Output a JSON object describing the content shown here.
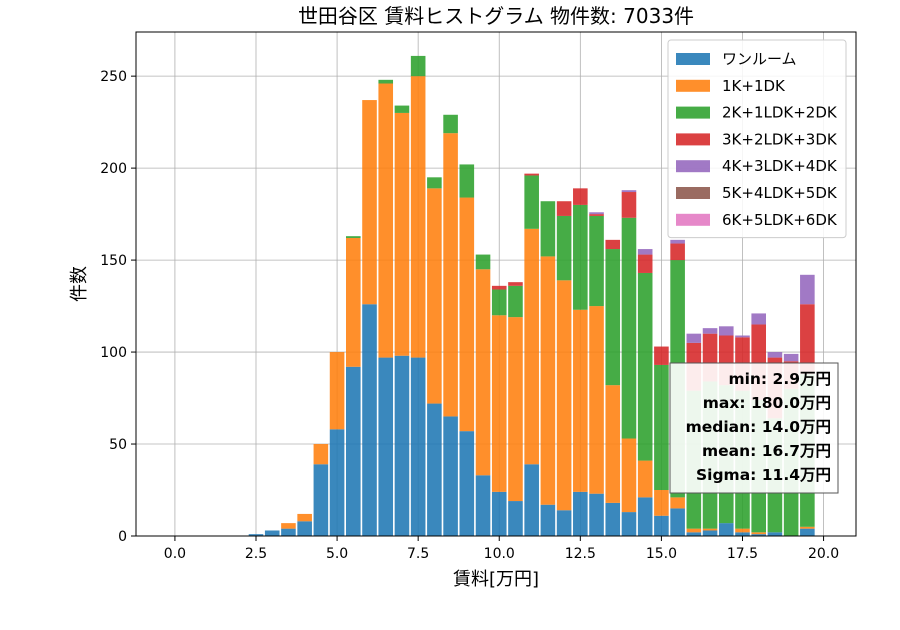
{
  "chart_data": {
    "type": "bar",
    "title": "世田谷区 賃料ヒストグラム  物件数: 7033件",
    "xlabel": "賃料[万円]",
    "ylabel": "件数",
    "xlim": [
      -1.2,
      21.0
    ],
    "ylim": [
      0,
      274
    ],
    "grid": true,
    "bin_width": 0.5,
    "x_ticks": [
      "0.0",
      "2.5",
      "5.0",
      "7.5",
      "10.0",
      "12.5",
      "15.0",
      "17.5",
      "20.0"
    ],
    "y_ticks": [
      "0",
      "50",
      "100",
      "150",
      "200",
      "250"
    ],
    "legend_position": "top-right",
    "x": [
      2.5,
      3.0,
      3.5,
      4.0,
      4.5,
      5.0,
      5.5,
      6.0,
      6.5,
      7.0,
      7.5,
      8.0,
      8.5,
      9.0,
      9.5,
      10.0,
      10.5,
      11.0,
      11.5,
      12.0,
      12.5,
      13.0,
      13.5,
      14.0,
      14.5,
      15.0,
      15.5,
      16.0,
      16.5,
      17.0,
      17.5,
      18.0,
      18.5,
      19.0,
      19.5
    ],
    "series": [
      {
        "name": "ワンルーム",
        "color": "#1f77b4",
        "values": [
          1,
          3,
          4,
          8,
          39,
          58,
          92,
          126,
          97,
          98,
          97,
          72,
          65,
          57,
          33,
          24,
          19,
          39,
          17,
          14,
          24,
          23,
          18,
          13,
          21,
          11,
          15,
          2,
          3,
          7,
          2,
          1,
          2,
          0,
          4
        ]
      },
      {
        "name": "1K+1DK",
        "color": "#ff7f0e",
        "values": [
          0,
          0,
          3,
          4,
          11,
          42,
          70,
          111,
          149,
          132,
          153,
          117,
          154,
          127,
          112,
          96,
          100,
          128,
          135,
          125,
          99,
          102,
          64,
          40,
          20,
          14,
          6,
          2,
          1,
          0,
          2,
          1,
          0,
          0,
          1
        ]
      },
      {
        "name": "2K+1LDK+2DK",
        "color": "#2ca02c",
        "values": [
          0,
          0,
          0,
          0,
          0,
          0,
          1,
          0,
          2,
          4,
          11,
          6,
          10,
          18,
          8,
          14,
          17,
          29,
          30,
          35,
          57,
          49,
          74,
          120,
          102,
          68,
          129,
          75,
          80,
          75,
          75,
          72,
          62,
          80,
          83
        ]
      },
      {
        "name": "3K+2LDK+3DK",
        "color": "#d62728",
        "values": [
          0,
          0,
          0,
          0,
          0,
          0,
          0,
          0,
          0,
          0,
          0,
          0,
          0,
          0,
          0,
          2,
          2,
          1,
          0,
          8,
          9,
          1,
          5,
          14,
          10,
          10,
          9,
          26,
          26,
          27,
          29,
          41,
          33,
          15,
          38
        ]
      },
      {
        "name": "4K+3LDK+4DK",
        "color": "#9467bd",
        "values": [
          0,
          0,
          0,
          0,
          0,
          0,
          0,
          0,
          0,
          0,
          0,
          0,
          0,
          0,
          0,
          0,
          0,
          0,
          0,
          0,
          0,
          1,
          0,
          1,
          3,
          0,
          2,
          5,
          3,
          5,
          1,
          6,
          3,
          4,
          16
        ]
      },
      {
        "name": "5K+4LDK+5DK",
        "color": "#8c564b",
        "values": [
          0,
          0,
          0,
          0,
          0,
          0,
          0,
          0,
          0,
          0,
          0,
          0,
          0,
          0,
          0,
          0,
          0,
          0,
          0,
          0,
          0,
          0,
          0,
          0,
          0,
          0,
          0,
          0,
          0,
          0,
          0,
          0,
          0,
          0,
          0
        ]
      },
      {
        "name": "6K+5LDK+6DK",
        "color": "#e377c2",
        "values": [
          0,
          0,
          0,
          0,
          0,
          0,
          0,
          0,
          0,
          0,
          0,
          0,
          0,
          0,
          0,
          0,
          0,
          0,
          0,
          0,
          0,
          0,
          0,
          0,
          0,
          0,
          0,
          0,
          0,
          0,
          0,
          0,
          0,
          0,
          0
        ]
      }
    ],
    "stats": [
      "min: 2.9万円",
      "max: 180.0万円",
      "median: 14.0万円",
      "mean: 16.7万円",
      "Sigma: 11.4万円"
    ]
  }
}
